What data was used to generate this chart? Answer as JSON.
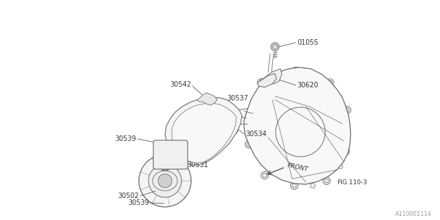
{
  "background_color": "#ffffff",
  "fig_ref": "FIG.110-3",
  "doc_ref": "A110001114",
  "line_color": "#666666",
  "text_color": "#333333",
  "label_fontsize": 7.0,
  "fig_width": 6.4,
  "fig_height": 3.2,
  "dpi": 100
}
